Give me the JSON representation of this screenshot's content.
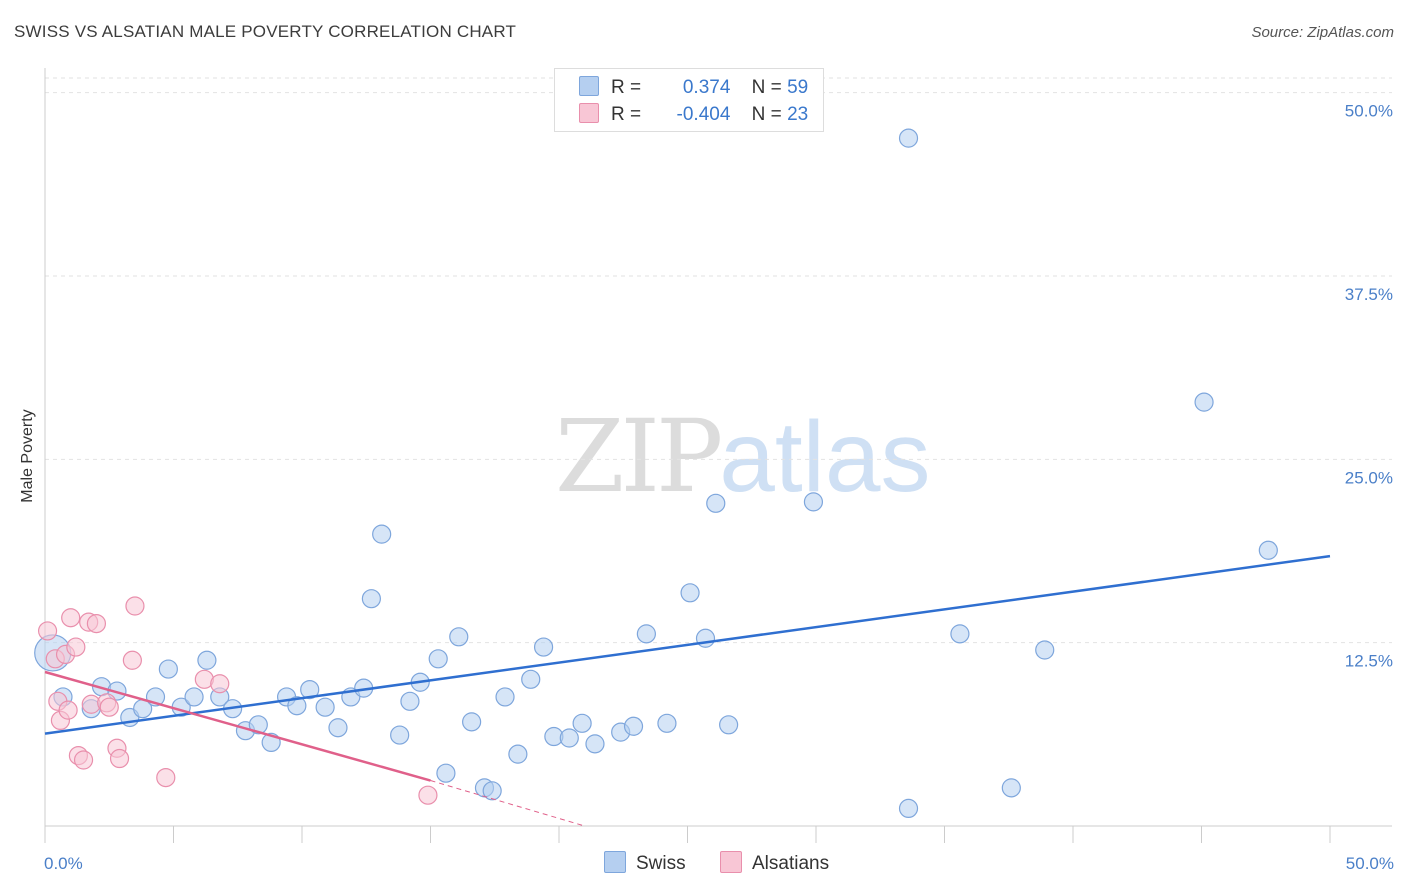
{
  "title": "SWISS VS ALSATIAN MALE POVERTY CORRELATION CHART",
  "source": "Source: ZipAtlas.com",
  "watermark": {
    "part1": "ZIP",
    "part2": "atlas"
  },
  "legend": {
    "swiss": {
      "r_label": "R =",
      "r_value": "0.374",
      "n_label": "N =",
      "n_value": "59"
    },
    "alsatians": {
      "r_label": "R =",
      "r_value": "-0.404",
      "n_label": "N =",
      "n_value": "23"
    }
  },
  "colors": {
    "swiss_fill": "#b5cff0",
    "swiss_stroke": "#7ea6dc",
    "swiss_line": "#2f6fd0",
    "alsatians_fill": "#f8c6d5",
    "alsatians_stroke": "#e98fac",
    "alsatians_line": "#e0608a",
    "tick_text": "#4a7fc8",
    "grid": "#e2e2e2"
  },
  "chart_data": {
    "type": "scatter",
    "title": "SWISS VS ALSATIAN MALE POVERTY CORRELATION CHART",
    "xlabel": "",
    "ylabel": "Male Poverty",
    "xlim": [
      0,
      50
    ],
    "ylim": [
      0,
      51
    ],
    "x_tick_labels": [
      "0.0%",
      "50.0%"
    ],
    "y_ticks": [
      12.5,
      25.0,
      37.5,
      50.0
    ],
    "y_tick_labels": [
      "12.5%",
      "25.0%",
      "37.5%",
      "50.0%"
    ],
    "grid": "horizontal dashed",
    "legend_position": "top-center",
    "series": [
      {
        "name": "Swiss",
        "r": 0.374,
        "n": 59,
        "trend": {
          "x": [
            0,
            50
          ],
          "y": [
            6.3,
            18.4
          ]
        },
        "points": [
          [
            0.3,
            11.8
          ],
          [
            0.7,
            8.8
          ],
          [
            1.8,
            8.0
          ],
          [
            2.2,
            9.5
          ],
          [
            2.8,
            9.2
          ],
          [
            3.3,
            7.4
          ],
          [
            3.8,
            8.0
          ],
          [
            4.3,
            8.8
          ],
          [
            4.8,
            10.7
          ],
          [
            5.3,
            8.1
          ],
          [
            5.8,
            8.8
          ],
          [
            6.3,
            11.3
          ],
          [
            6.8,
            8.8
          ],
          [
            7.3,
            8.0
          ],
          [
            7.8,
            6.5
          ],
          [
            8.3,
            6.9
          ],
          [
            8.8,
            5.7
          ],
          [
            9.4,
            8.8
          ],
          [
            9.8,
            8.2
          ],
          [
            10.3,
            9.3
          ],
          [
            10.9,
            8.1
          ],
          [
            11.4,
            6.7
          ],
          [
            11.9,
            8.8
          ],
          [
            12.4,
            9.4
          ],
          [
            12.7,
            15.5
          ],
          [
            13.1,
            19.9
          ],
          [
            13.8,
            6.2
          ],
          [
            14.2,
            8.5
          ],
          [
            14.6,
            9.8
          ],
          [
            15.3,
            11.4
          ],
          [
            15.6,
            3.6
          ],
          [
            16.1,
            12.9
          ],
          [
            16.6,
            7.1
          ],
          [
            17.1,
            2.6
          ],
          [
            17.4,
            2.4
          ],
          [
            17.9,
            8.8
          ],
          [
            18.4,
            4.9
          ],
          [
            18.9,
            10.0
          ],
          [
            19.4,
            12.2
          ],
          [
            19.8,
            6.1
          ],
          [
            20.4,
            6.0
          ],
          [
            20.9,
            7.0
          ],
          [
            21.4,
            5.6
          ],
          [
            22.4,
            6.4
          ],
          [
            22.9,
            6.8
          ],
          [
            23.4,
            13.1
          ],
          [
            24.2,
            7.0
          ],
          [
            25.1,
            15.9
          ],
          [
            25.7,
            12.8
          ],
          [
            26.1,
            22.0
          ],
          [
            26.6,
            6.9
          ],
          [
            29.9,
            22.1
          ],
          [
            33.6,
            46.9
          ],
          [
            33.6,
            1.2
          ],
          [
            35.6,
            13.1
          ],
          [
            37.6,
            2.6
          ],
          [
            45.1,
            28.9
          ],
          [
            47.6,
            18.8
          ],
          [
            38.9,
            12.0
          ]
        ]
      },
      {
        "name": "Alsatians",
        "r": -0.404,
        "n": 23,
        "trend": {
          "x": [
            0,
            15
          ],
          "y": [
            10.5,
            3.1
          ]
        },
        "trend_extension": {
          "x": [
            15,
            21
          ],
          "y": [
            3.1,
            0
          ]
        },
        "points": [
          [
            0.1,
            13.3
          ],
          [
            0.4,
            11.4
          ],
          [
            0.5,
            8.5
          ],
          [
            0.6,
            7.2
          ],
          [
            0.8,
            11.7
          ],
          [
            0.9,
            7.9
          ],
          [
            1.0,
            14.2
          ],
          [
            1.2,
            12.2
          ],
          [
            1.3,
            4.8
          ],
          [
            1.5,
            4.5
          ],
          [
            1.7,
            13.9
          ],
          [
            1.8,
            8.3
          ],
          [
            2.0,
            13.8
          ],
          [
            2.4,
            8.4
          ],
          [
            2.5,
            8.1
          ],
          [
            2.8,
            5.3
          ],
          [
            2.9,
            4.6
          ],
          [
            3.4,
            11.3
          ],
          [
            3.5,
            15.0
          ],
          [
            4.7,
            3.3
          ],
          [
            6.2,
            10.0
          ],
          [
            6.8,
            9.7
          ],
          [
            14.9,
            2.1
          ]
        ]
      }
    ]
  },
  "bottom_legend": {
    "swiss": "Swiss",
    "alsatians": "Alsatians"
  }
}
